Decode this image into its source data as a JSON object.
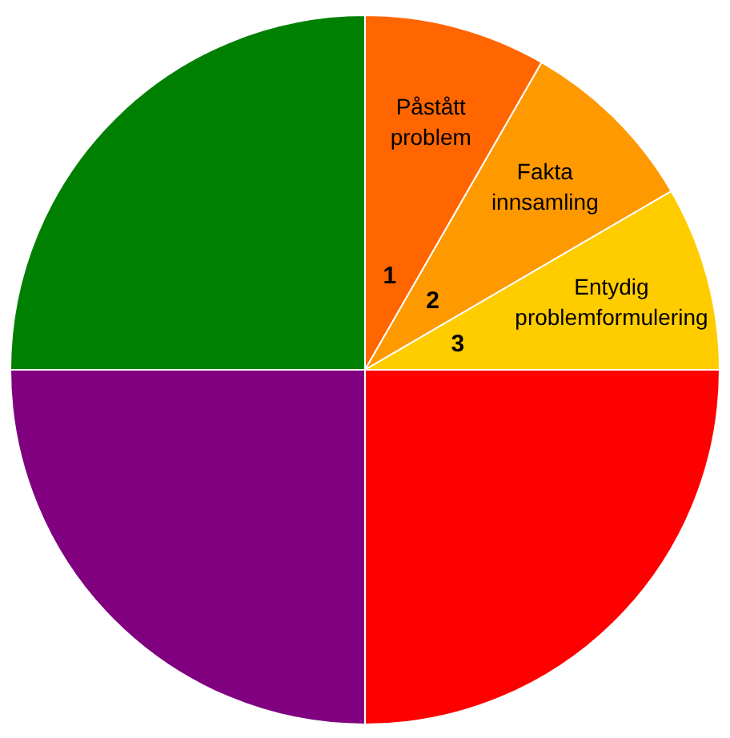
{
  "chart_data": {
    "type": "pie",
    "categories": [
      "Påstått problem",
      "Fakta innsamling",
      "Entydig problemformulering",
      null,
      null,
      null
    ],
    "values": [
      8.3,
      8.3,
      8.4,
      25,
      25,
      25
    ],
    "colors": [
      "#ff6600",
      "#ff9900",
      "#ffcc00",
      "#ff0000",
      "#800080",
      "#008000"
    ],
    "annotations": [
      {
        "text": "1",
        "x": "Påstått problem"
      },
      {
        "text": "2",
        "x": "Fakta innsamling"
      },
      {
        "text": "3",
        "x": "Entydig problemformulering"
      }
    ]
  }
}
